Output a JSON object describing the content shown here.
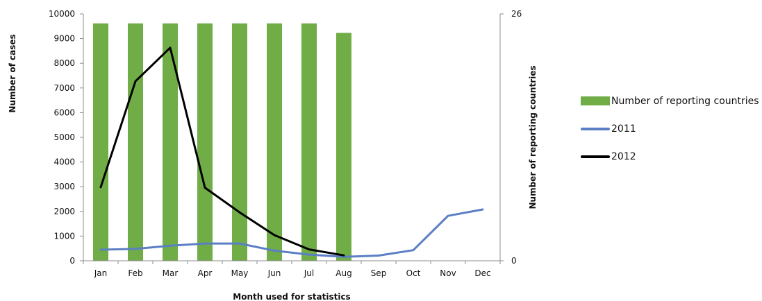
{
  "chart_data": {
    "type": "bar",
    "title": "",
    "xlabel": "Month used for statistics",
    "ylabel_left": "Number of cases",
    "ylabel_right": "Number of reporting countries",
    "categories": [
      "Jan",
      "Feb",
      "Mar",
      "Apr",
      "May",
      "Jun",
      "Jul",
      "Aug",
      "Sep",
      "Oct",
      "Nov",
      "Dec"
    ],
    "ylim_left": [
      0,
      10000
    ],
    "yticks_left": [
      "0",
      "1000",
      "2000",
      "3000",
      "4000",
      "5000",
      "6000",
      "7000",
      "8000",
      "9000",
      "10000"
    ],
    "ylim_right": [
      0,
      26
    ],
    "yticks_right": [
      "0",
      "26"
    ],
    "grid": false,
    "legend_position": "right",
    "series": [
      {
        "name": "Number of reporting countries",
        "type": "bar",
        "axis": "right",
        "color": "#70ad47",
        "values": [
          25,
          25,
          25,
          25,
          25,
          25,
          25,
          24,
          null,
          null,
          null,
          null
        ]
      },
      {
        "name": "2011",
        "type": "line",
        "axis": "left",
        "color": "#5b7fc4",
        "values": [
          450,
          480,
          610,
          700,
          700,
          410,
          250,
          160,
          210,
          430,
          1820,
          2080
        ]
      },
      {
        "name": "2012",
        "type": "line",
        "axis": "left",
        "color": "#000000",
        "values": [
          2980,
          7270,
          8630,
          2960,
          1960,
          1040,
          460,
          220,
          null,
          null,
          null,
          null
        ]
      }
    ]
  }
}
